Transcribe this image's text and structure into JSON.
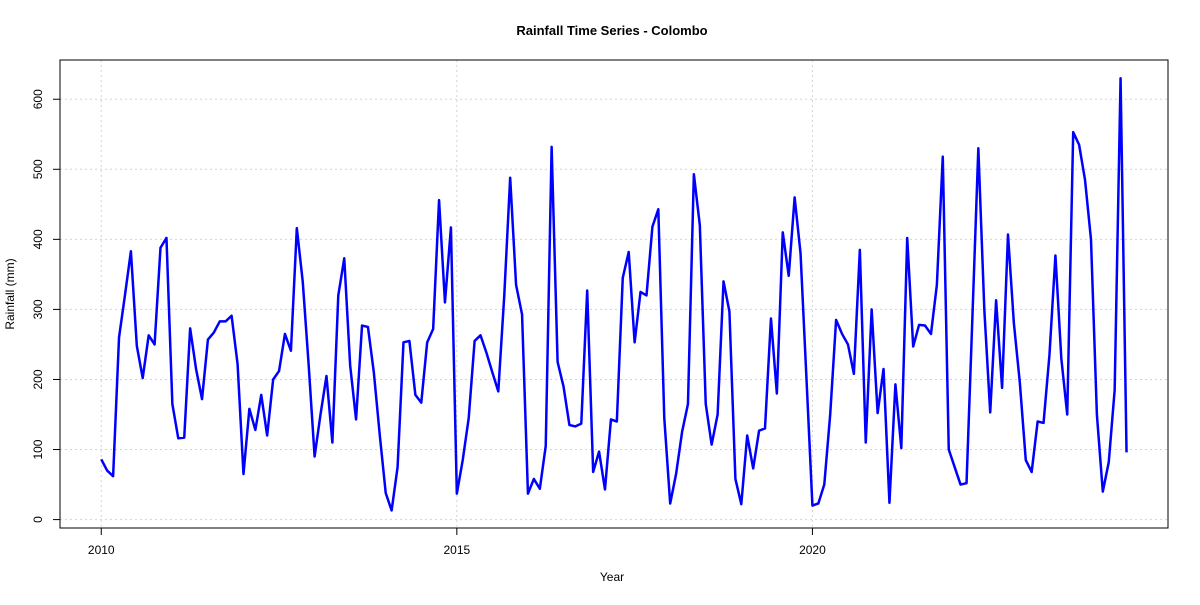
{
  "chart_data": {
    "type": "line",
    "title": "Rainfall Time Series - Colombo",
    "x_label": "Year",
    "y_label": "Rainfall (mm)",
    "x": [
      2010,
      2010.083,
      2010.167,
      2010.25,
      2010.333,
      2010.417,
      2010.5,
      2010.583,
      2010.667,
      2010.75,
      2010.833,
      2010.917,
      2011,
      2011.083,
      2011.167,
      2011.25,
      2011.333,
      2011.417,
      2011.5,
      2011.583,
      2011.667,
      2011.75,
      2011.833,
      2011.917,
      2012,
      2012.083,
      2012.167,
      2012.25,
      2012.333,
      2012.417,
      2012.5,
      2012.583,
      2012.667,
      2012.75,
      2012.833,
      2012.917,
      2013,
      2013.083,
      2013.167,
      2013.25,
      2013.333,
      2013.417,
      2013.5,
      2013.583,
      2013.667,
      2013.75,
      2013.833,
      2013.917,
      2014,
      2014.083,
      2014.167,
      2014.25,
      2014.333,
      2014.417,
      2014.5,
      2014.583,
      2014.667,
      2014.75,
      2014.833,
      2014.917,
      2015,
      2015.083,
      2015.167,
      2015.25,
      2015.333,
      2015.417,
      2015.5,
      2015.583,
      2015.667,
      2015.75,
      2015.833,
      2015.917,
      2016,
      2016.083,
      2016.167,
      2016.25,
      2016.333,
      2016.417,
      2016.5,
      2016.583,
      2016.667,
      2016.75,
      2016.833,
      2016.917,
      2017,
      2017.083,
      2017.167,
      2017.25,
      2017.333,
      2017.417,
      2017.5,
      2017.583,
      2017.667,
      2017.75,
      2017.833,
      2017.917,
      2018,
      2018.083,
      2018.167,
      2018.25,
      2018.333,
      2018.417,
      2018.5,
      2018.583,
      2018.667,
      2018.75,
      2018.833,
      2018.917,
      2019,
      2019.083,
      2019.167,
      2019.25,
      2019.333,
      2019.417,
      2019.5,
      2019.583,
      2019.667,
      2019.75,
      2019.833,
      2019.917,
      2020,
      2020.083,
      2020.167,
      2020.25,
      2020.333,
      2020.417,
      2020.5,
      2020.583,
      2020.667,
      2020.75,
      2020.833,
      2020.917,
      2021,
      2021.083,
      2021.167,
      2021.25,
      2021.333,
      2021.417,
      2021.5,
      2021.583,
      2021.667,
      2021.75,
      2021.833,
      2021.917,
      2022,
      2022.083,
      2022.167,
      2022.25,
      2022.333,
      2022.417,
      2022.5,
      2022.583,
      2022.667,
      2022.75,
      2022.833,
      2022.917,
      2023,
      2023.083,
      2023.167,
      2023.25,
      2023.333,
      2023.417,
      2023.5,
      2023.583,
      2023.667,
      2023.75,
      2023.833,
      2023.917,
      2024,
      2024.083,
      2024.167,
      2024.25,
      2024.333,
      2024.417
    ],
    "values": [
      86,
      70,
      62,
      260,
      320,
      383,
      248,
      202,
      263,
      250,
      388,
      402,
      165,
      116,
      117,
      273,
      215,
      172,
      257,
      267,
      283,
      283,
      291,
      222,
      65,
      158,
      128,
      178,
      120,
      200,
      212,
      265,
      241,
      416,
      340,
      220,
      90,
      150,
      205,
      110,
      320,
      373,
      220,
      143,
      277,
      275,
      210,
      120,
      38,
      13,
      75,
      253,
      255,
      178,
      167,
      253,
      272,
      456,
      310,
      417,
      37,
      85,
      145,
      255,
      263,
      238,
      210,
      183,
      320,
      488,
      335,
      293,
      37,
      58,
      44,
      105,
      532,
      225,
      190,
      135,
      133,
      137,
      327,
      68,
      97,
      43,
      143,
      140,
      345,
      382,
      253,
      325,
      320,
      418,
      443,
      145,
      23,
      65,
      125,
      165,
      493,
      420,
      165,
      107,
      150,
      340,
      297,
      58,
      22,
      120,
      73,
      127,
      130,
      287,
      180,
      410,
      348,
      460,
      380,
      200,
      20,
      23,
      50,
      150,
      285,
      265,
      250,
      208,
      385,
      110,
      300,
      152,
      215,
      24,
      193,
      102,
      402,
      247,
      278,
      277,
      265,
      335,
      518,
      100,
      75,
      50,
      52,
      290,
      530,
      300,
      153,
      313,
      188,
      407,
      280,
      195,
      85,
      68,
      140,
      138,
      235,
      377,
      230,
      150,
      553,
      535,
      485,
      400,
      150,
      40,
      82,
      185,
      630,
      96
    ],
    "color": "#0000ff",
    "xlim": [
      2009.42,
      2025.0
    ],
    "xticks": [
      2010,
      2015,
      2020
    ],
    "ylim": [
      -12,
      656
    ],
    "yticks": [
      0,
      100,
      200,
      300,
      400,
      500,
      600
    ],
    "grid": true
  }
}
